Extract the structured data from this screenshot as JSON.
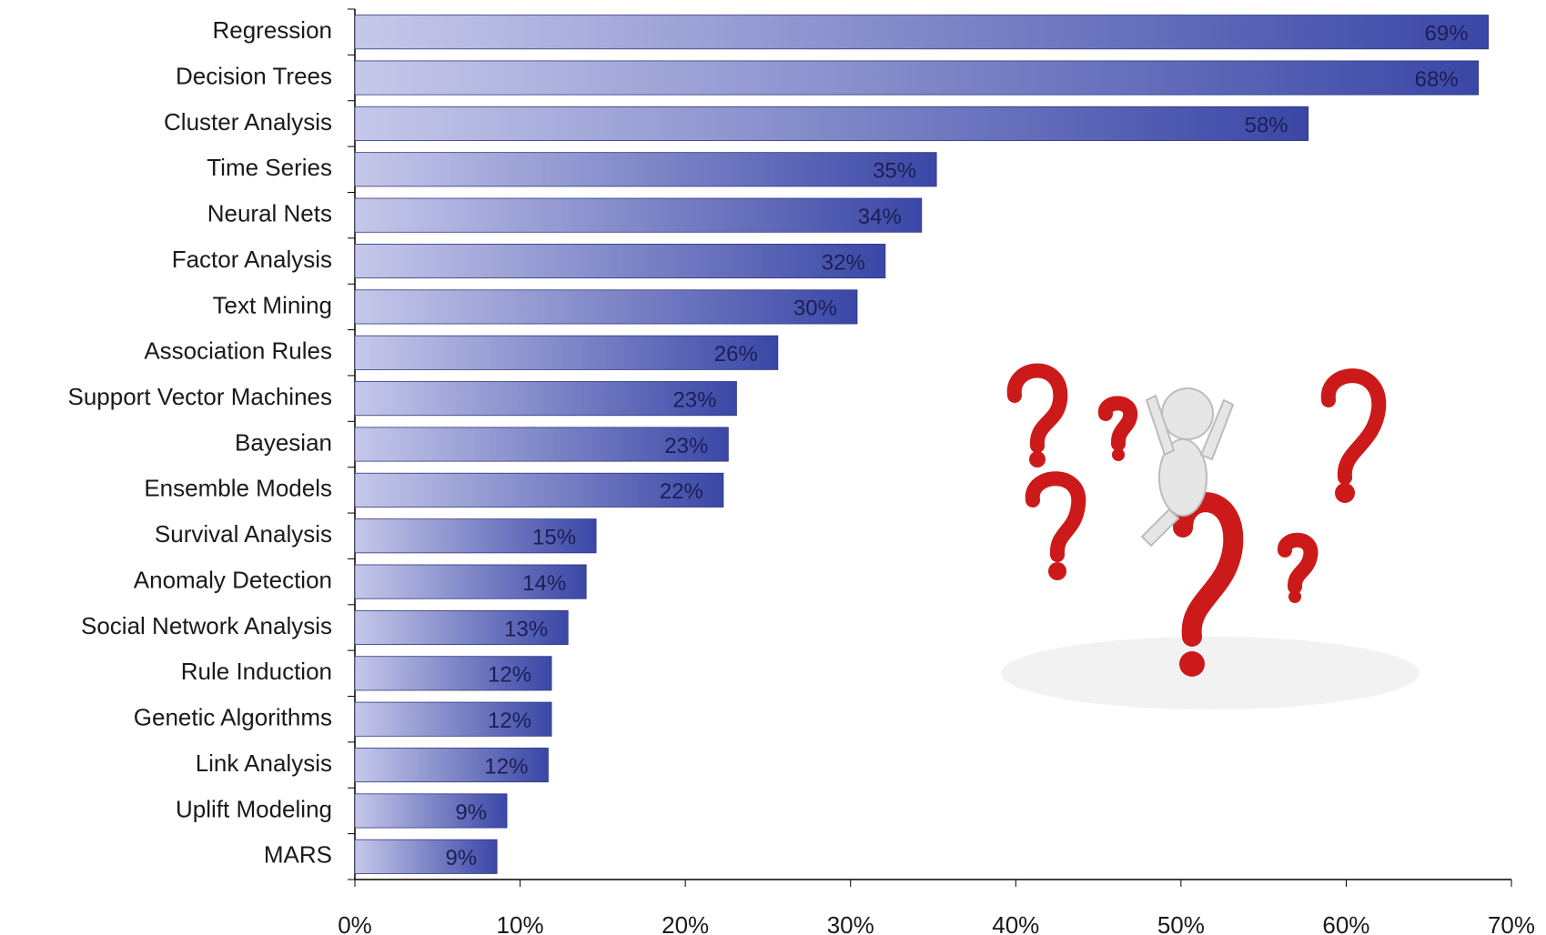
{
  "chart_data": {
    "type": "hbar",
    "categories": [
      "Regression",
      "Decision Trees",
      "Cluster Analysis",
      "Time Series",
      "Neural Nets",
      "Factor Analysis",
      "Text Mining",
      "Association Rules",
      "Support Vector Machines",
      "Bayesian",
      "Ensemble Models",
      "Survival Analysis",
      "Anomaly Detection",
      "Social Network Analysis",
      "Rule Induction",
      "Genetic Algorithms",
      "Link Analysis",
      "Uplift Modeling",
      "MARS"
    ],
    "values": [
      68.6,
      68.0,
      57.7,
      35.2,
      34.3,
      32.1,
      30.4,
      25.6,
      23.1,
      22.6,
      22.3,
      14.6,
      14.0,
      12.9,
      11.9,
      11.9,
      11.7,
      9.2,
      8.6
    ],
    "value_labels": [
      "69%",
      "68%",
      "58%",
      "35%",
      "34%",
      "32%",
      "30%",
      "26%",
      "23%",
      "23%",
      "22%",
      "15%",
      "14%",
      "13%",
      "12%",
      "12%",
      "12%",
      "9%",
      "9%"
    ],
    "color_start": "#c6c8ea",
    "color_end": "#3a47a6",
    "xlim": [
      0,
      70
    ],
    "xticks": [
      {
        "value": 0,
        "label": "0%"
      },
      {
        "value": 10,
        "label": "10%"
      },
      {
        "value": 20,
        "label": "20%"
      },
      {
        "value": 30,
        "label": "30%"
      },
      {
        "value": 40,
        "label": "40%"
      },
      {
        "value": 50,
        "label": "50%"
      },
      {
        "value": 60,
        "label": "60%"
      },
      {
        "value": 70,
        "label": "70%"
      }
    ]
  }
}
